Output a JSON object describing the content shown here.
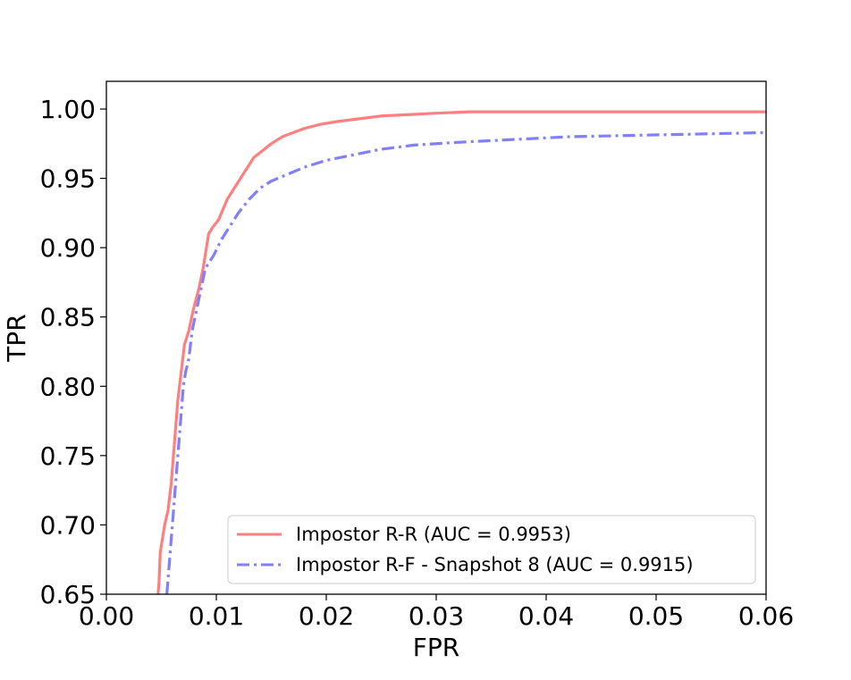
{
  "chart_data": {
    "type": "line",
    "xlabel": "FPR",
    "ylabel": "TPR",
    "xlim": [
      0.0,
      0.06
    ],
    "ylim": [
      0.65,
      1.02
    ],
    "xticks": [
      0.0,
      0.01,
      0.02,
      0.03,
      0.04,
      0.05,
      0.06
    ],
    "xtick_labels": [
      "0.00",
      "0.01",
      "0.02",
      "0.03",
      "0.04",
      "0.05",
      "0.06"
    ],
    "yticks": [
      0.65,
      0.7,
      0.75,
      0.8,
      0.85,
      0.9,
      0.95,
      1.0
    ],
    "ytick_labels": [
      "0.65",
      "0.70",
      "0.75",
      "0.80",
      "0.85",
      "0.90",
      "0.95",
      "1.00"
    ],
    "grid": false,
    "legend_position": "lower-right",
    "series": [
      {
        "name": "Impostor R-R (AUC = 0.9953)",
        "color": "#ff7f7f",
        "style": "solid",
        "x": [
          0.0047,
          0.0048,
          0.0049,
          0.0051,
          0.0053,
          0.0056,
          0.0059,
          0.0062,
          0.0065,
          0.0068,
          0.0071,
          0.0075,
          0.0079,
          0.0084,
          0.0088,
          0.0093,
          0.0097,
          0.0102,
          0.011,
          0.0118,
          0.0126,
          0.0134,
          0.0142,
          0.015,
          0.016,
          0.017,
          0.018,
          0.0195,
          0.021,
          0.023,
          0.025,
          0.0275,
          0.03,
          0.033,
          0.04,
          0.05,
          0.06
        ],
        "y": [
          0.65,
          0.66,
          0.68,
          0.69,
          0.7,
          0.71,
          0.73,
          0.76,
          0.79,
          0.81,
          0.83,
          0.84,
          0.855,
          0.87,
          0.885,
          0.91,
          0.915,
          0.92,
          0.935,
          0.945,
          0.955,
          0.965,
          0.97,
          0.975,
          0.98,
          0.983,
          0.986,
          0.989,
          0.991,
          0.993,
          0.995,
          0.996,
          0.997,
          0.998,
          0.998,
          0.998,
          0.998
        ]
      },
      {
        "name": "Impostor R-F - Snapshot 8 (AUC = 0.9915)",
        "color": "#7f7fff",
        "style": "dashdot",
        "x": [
          0.0055,
          0.0056,
          0.0058,
          0.006,
          0.0062,
          0.0064,
          0.0066,
          0.0068,
          0.007,
          0.0072,
          0.0075,
          0.0078,
          0.0082,
          0.0086,
          0.009,
          0.0094,
          0.0098,
          0.0104,
          0.0112,
          0.012,
          0.013,
          0.014,
          0.015,
          0.0165,
          0.018,
          0.02,
          0.0225,
          0.025,
          0.028,
          0.032,
          0.037,
          0.042,
          0.048,
          0.054,
          0.06
        ],
        "y": [
          0.65,
          0.66,
          0.68,
          0.7,
          0.72,
          0.74,
          0.76,
          0.78,
          0.8,
          0.81,
          0.82,
          0.84,
          0.855,
          0.87,
          0.885,
          0.89,
          0.895,
          0.905,
          0.915,
          0.925,
          0.935,
          0.943,
          0.948,
          0.953,
          0.958,
          0.963,
          0.967,
          0.971,
          0.974,
          0.976,
          0.978,
          0.98,
          0.981,
          0.982,
          0.983
        ]
      }
    ]
  }
}
